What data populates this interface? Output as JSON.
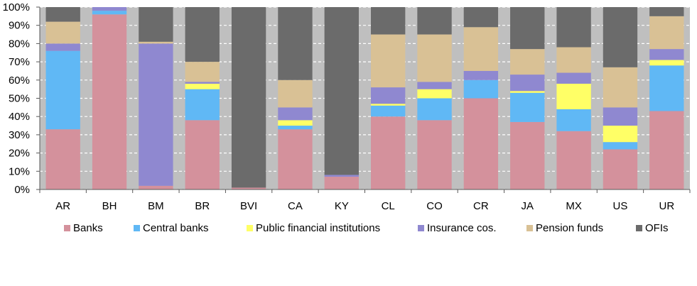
{
  "chart_data": {
    "type": "bar",
    "stacked": true,
    "percent_stacked": true,
    "categories": [
      "AR",
      "BH",
      "BM",
      "BR",
      "BVI",
      "CA",
      "KY",
      "CL",
      "CO",
      "CR",
      "JA",
      "MX",
      "US",
      "UR"
    ],
    "ylim": [
      0,
      100
    ],
    "yticks": [
      "0%",
      "10%",
      "20%",
      "30%",
      "40%",
      "50%",
      "60%",
      "70%",
      "80%",
      "90%",
      "100%"
    ],
    "grid": true,
    "plot_background": "#bfbfbf",
    "legend_position": "bottom",
    "series": [
      {
        "name": "Banks",
        "color": "#d4919c",
        "values": [
          33,
          96,
          2,
          38,
          1,
          33,
          7,
          40,
          38,
          50,
          37,
          32,
          22,
          43
        ]
      },
      {
        "name": "Central banks",
        "color": "#60b8f5",
        "values": [
          43,
          2,
          0,
          17,
          0,
          2,
          0,
          6,
          12,
          10,
          16,
          12,
          4,
          25
        ]
      },
      {
        "name": "Public financial institutions",
        "color": "#ffff66",
        "values": [
          0,
          0,
          0,
          3,
          0,
          3,
          0,
          1,
          5,
          0,
          1,
          14,
          9,
          3
        ]
      },
      {
        "name": "Insurance cos.",
        "color": "#8f88d0",
        "values": [
          4,
          2,
          78,
          1,
          0,
          7,
          1,
          9,
          4,
          5,
          9,
          6,
          10,
          6
        ]
      },
      {
        "name": "Pension funds",
        "color": "#d9c195",
        "values": [
          12,
          0,
          1,
          11,
          0,
          15,
          0,
          29,
          26,
          24,
          14,
          14,
          22,
          18
        ]
      },
      {
        "name": "OFIs",
        "color": "#6b6b6b",
        "values": [
          8,
          0,
          19,
          30,
          99,
          40,
          92,
          15,
          15,
          11,
          23,
          22,
          33,
          5
        ]
      }
    ]
  }
}
